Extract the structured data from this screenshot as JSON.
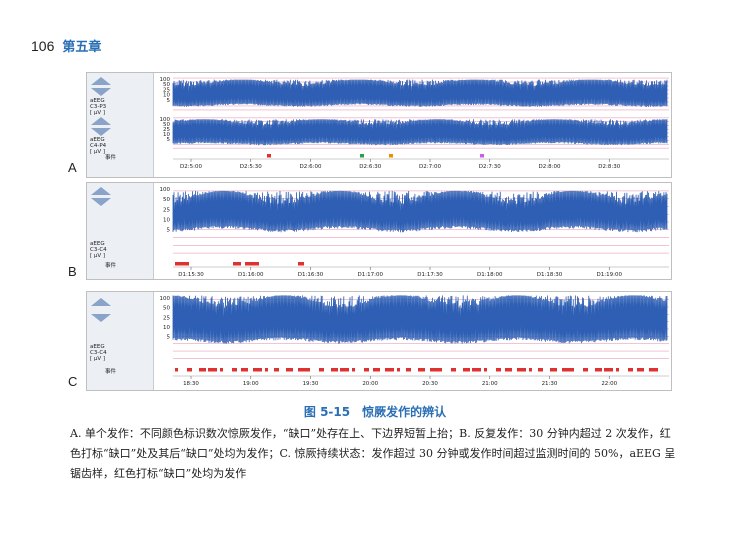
{
  "header": {
    "page_number": "106",
    "chapter": "第五章"
  },
  "panels": [
    {
      "id": "A",
      "label": "A",
      "event_label": "事件",
      "channels": [
        {
          "name": "aEEG\nC3-P3\n[ μV ]",
          "ticks": [
            "100",
            "50",
            "25",
            "10",
            "5"
          ]
        },
        {
          "name": "aEEG\nC4-P4\n[ μV ]",
          "ticks": [
            "100",
            "50",
            "25",
            "10",
            "5"
          ]
        }
      ],
      "time_ticks": [
        "D2:5:00",
        "D2:5:30",
        "D2:6:00",
        "D2:6:30",
        "D2:7:00",
        "D2:7:30",
        "D2:8:00",
        "D2:8:30"
      ],
      "event_colors": [
        "#e03131",
        "#2f9e44",
        "#f08c00",
        "#cc5de8"
      ]
    },
    {
      "id": "B",
      "label": "B",
      "event_label": "事件",
      "channels": [
        {
          "name": "aEEG\nC3-C4\n[ μV ]",
          "ticks": [
            "100",
            "50",
            "25",
            "10",
            "5"
          ]
        }
      ],
      "time_ticks": [
        "D1:15:30",
        "D1:16:00",
        "D1:16:30",
        "D1:17:00",
        "D1:17:30",
        "D1:18:00",
        "D1:18:30",
        "D1:19:00"
      ]
    },
    {
      "id": "C",
      "label": "C",
      "event_label": "事件",
      "channels": [
        {
          "name": "aEEG\nC3-C4\n[ μV ]",
          "ticks": [
            "100",
            "50",
            "25",
            "10",
            "5"
          ]
        }
      ],
      "time_ticks": [
        "18:30",
        "19:00",
        "19:30",
        "20:00",
        "20:30",
        "21:00",
        "21:30",
        "22:00"
      ]
    }
  ],
  "caption": {
    "title": "图 5-15　惊厥发作的辨认",
    "body": "A. 单个发作：不同颜色标识数次惊厥发作，“缺口”处存在上、下边界短暂上抬；B. 反复发作：30 分钟内超过 2 次发作，红色打标“缺口”处及其后“缺口”处均为发作；C. 惊厥持续状态：发作超过 30 分钟或发作时间超过监测时间的 50%，aEEG 呈锯齿样，红色打标“缺口”处均为发作"
  },
  "colors": {
    "trace": "#2e5fb4",
    "grid": "#e58aa8",
    "event": "#e03131",
    "caption_blue": "#2a6fb5"
  }
}
